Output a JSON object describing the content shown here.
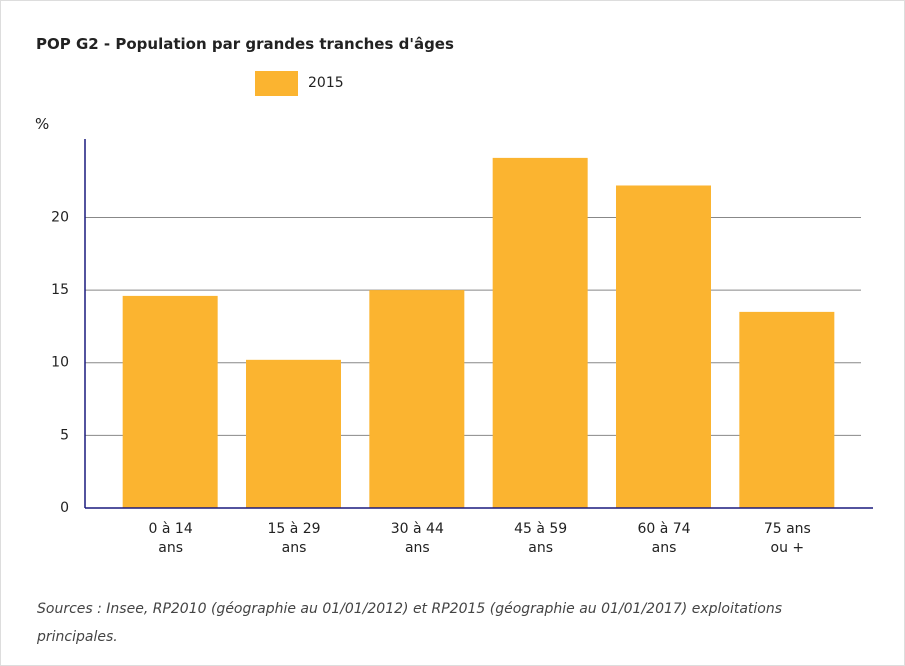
{
  "chart_data": {
    "type": "bar",
    "title": "POP G2 - Population par grandes tranches d'âges",
    "y_label": "%",
    "categories": [
      "0 à 14 ans",
      "15 à 29 ans",
      "30 à 44 ans",
      "45 à 59 ans",
      "60 à 74 ans",
      "75 ans ou +"
    ],
    "series": [
      {
        "name": "2015",
        "color": "#fbb430",
        "values": [
          14.6,
          10.2,
          15.0,
          24.1,
          22.2,
          13.5
        ]
      }
    ],
    "ylim": [
      0,
      25.4
    ],
    "yticks": [
      0,
      5,
      10,
      15,
      20
    ],
    "grid": true,
    "source": "Sources : Insee, RP2010 (géographie au 01/01/2012) et RP2015 (géographie au 01/01/2017) exploitations principales."
  }
}
